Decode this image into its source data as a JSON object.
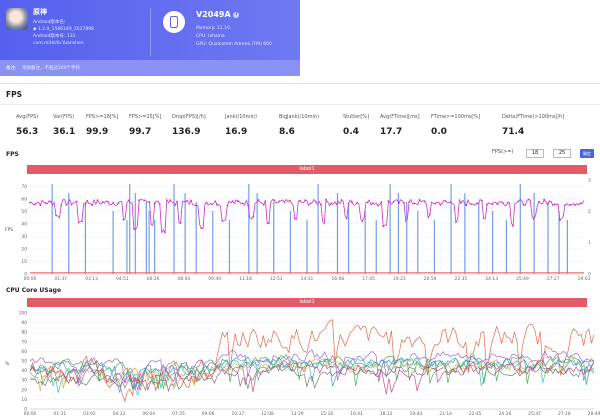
{
  "header": {
    "app_name": "原神",
    "app_lines": [
      "Android版本名:",
      "◆ 1.2.0_1566149_1627898",
      "Android版本号: 131",
      "com.miHoYo.Yuanshen"
    ],
    "note_label": "备注:",
    "note_placeholder": "添加备注，不超过200个字符",
    "device_name": "V2049A",
    "device_lines": [
      "Memory: 11.1G",
      "CPU: lahaina",
      "GPU: Qualcomm Adreno (TM) 660"
    ]
  },
  "fps_section": {
    "title": "FPS",
    "stats": [
      {
        "label": "Avg(FPS)",
        "value": "56.3"
      },
      {
        "label": "Var(FPS)",
        "value": "36.1"
      },
      {
        "label": "FPS>=18[%]",
        "value": "99.9"
      },
      {
        "label": "FPS>=25[%]",
        "value": "99.7"
      },
      {
        "label": "Drop(FPS)[/h]",
        "value": "136.9"
      },
      {
        "label": "Jank(/10min)",
        "value": "16.9"
      },
      {
        "label": "BigJank(/10min)",
        "value": "8.6"
      },
      {
        "label": "Stutter[%]",
        "value": "0.4"
      },
      {
        "label": "Avg(FTime)[ms]",
        "value": "17.7"
      },
      {
        "label": "FTime>=100ms[%]",
        "value": "0.0"
      },
      {
        "label": "Delta(FTime)>100ms[/h]",
        "value": "71.4"
      }
    ]
  },
  "fps_chart": {
    "heading": "FPS",
    "fps_ctrl_label": "FPS(>=)",
    "fps_threshold_1": "18",
    "fps_threshold_2": "25",
    "confirm_label": "确定",
    "banner": "label1",
    "ylabel": "FPS"
  },
  "cpu_chart": {
    "heading": "CPU Core USage",
    "banner": "label1",
    "ylabel": "%"
  },
  "chart_data": [
    {
      "type": "line",
      "title": "FPS",
      "ylabel": "FPS",
      "ylim": [
        0,
        75
      ],
      "yticks": [
        0,
        10,
        20,
        30,
        40,
        50,
        60,
        70
      ],
      "y2ticks": [
        0,
        1,
        2,
        3
      ],
      "x_tick_labels": [
        "00:00",
        "01:37",
        "03:13",
        "04:51",
        "06:26",
        "08:04",
        "09:40",
        "11:18",
        "12:53",
        "14:31",
        "16:08",
        "17:45",
        "19:21",
        "20:59",
        "22:35",
        "24:13",
        "25:49",
        "27:27",
        "29:03"
      ],
      "series": [
        {
          "color": "#cc33cc",
          "baseline": 57,
          "values_note_free": true,
          "dips": [
            [
              0.05,
              44
            ],
            [
              0.09,
              40
            ],
            [
              0.17,
              42
            ],
            [
              0.19,
              35
            ],
            [
              0.22,
              38
            ],
            [
              0.24,
              33
            ],
            [
              0.27,
              40
            ],
            [
              0.31,
              36
            ],
            [
              0.35,
              42
            ],
            [
              0.4,
              44
            ],
            [
              0.43,
              38
            ],
            [
              0.48,
              42
            ],
            [
              0.53,
              40
            ],
            [
              0.57,
              43
            ],
            [
              0.6,
              42
            ],
            [
              0.64,
              38
            ],
            [
              0.68,
              41
            ],
            [
              0.72,
              44
            ],
            [
              0.77,
              40
            ],
            [
              0.82,
              42
            ],
            [
              0.87,
              38
            ],
            [
              0.91,
              44
            ],
            [
              0.96,
              42
            ]
          ]
        },
        {
          "color": "#e86a6a",
          "baseline": 1
        }
      ],
      "spike_color": "#5a8fe0",
      "spikes": [
        0.04,
        0.07,
        0.1,
        0.15,
        0.175,
        0.18,
        0.19,
        0.21,
        0.215,
        0.225,
        0.26,
        0.28,
        0.3,
        0.33,
        0.36,
        0.395,
        0.41,
        0.44,
        0.47,
        0.5,
        0.52,
        0.555,
        0.575,
        0.605,
        0.625,
        0.65,
        0.665,
        0.68,
        0.7,
        0.73,
        0.76,
        0.785,
        0.81,
        0.835,
        0.86,
        0.885,
        0.91,
        0.935,
        0.955,
        0.97
      ]
    },
    {
      "type": "line",
      "title": "CPU Core USage",
      "ylabel": "%",
      "ylim": [
        0,
        100
      ],
      "yticks": [
        0,
        10,
        20,
        30,
        40,
        50,
        60,
        70,
        80,
        90,
        100
      ],
      "x_tick_labels": [
        "00:00",
        "01:31",
        "03:02",
        "04:33",
        "06:04",
        "07:35",
        "09:06",
        "10:37",
        "12:08",
        "13:39",
        "15:10",
        "16:41",
        "18:12",
        "19:43",
        "21:14",
        "22:45",
        "24:16",
        "25:47",
        "27:18",
        "28:49"
      ],
      "series": [
        {
          "color": "#e05a3a",
          "level": 40,
          "late_level": 75,
          "noise": 22
        },
        {
          "color": "#8f5bd9",
          "level": 48,
          "late_level": 55,
          "noise": 9
        },
        {
          "color": "#3fa34a",
          "level": 45,
          "late_level": 50,
          "noise": 10
        },
        {
          "color": "#3a8ddb",
          "level": 42,
          "late_level": 48,
          "noise": 10
        },
        {
          "color": "#d6a33a",
          "level": 38,
          "late_level": 45,
          "noise": 11
        },
        {
          "color": "#2fbfa8",
          "level": 40,
          "late_level": 46,
          "noise": 10
        },
        {
          "color": "#c9407a",
          "level": 35,
          "late_level": 43,
          "noise": 12
        },
        {
          "color": "#6b6b6b",
          "level": 30,
          "late_level": 40,
          "noise": 10
        }
      ]
    }
  ]
}
